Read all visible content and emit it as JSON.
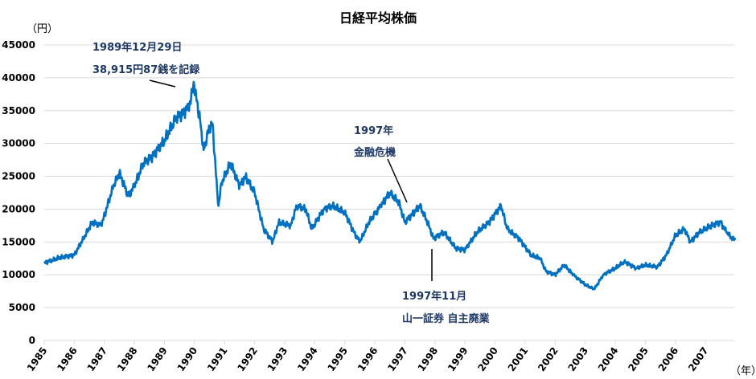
{
  "chart_data": {
    "type": "line",
    "title": "日経平均株価",
    "ylabel": "（円）",
    "xlabel": "（年）",
    "ylim": [
      0,
      45000
    ],
    "yticks": [
      0,
      5000,
      10000,
      15000,
      20000,
      25000,
      30000,
      35000,
      40000,
      45000
    ],
    "xlim": [
      1985,
      2008
    ],
    "xticks": [
      "1985",
      "1986",
      "1987",
      "1988",
      "1989",
      "1990",
      "1991",
      "1992",
      "1993",
      "1994",
      "1995",
      "1996",
      "1997",
      "1998",
      "1999",
      "2000",
      "2001",
      "2002",
      "2003",
      "2004",
      "2005",
      "2006",
      "2007"
    ],
    "grid": true,
    "line_color": "#0070c0",
    "annotation_color": "#1f3864",
    "series": [
      {
        "name": "日経平均株価",
        "x": [
          1985.0,
          1985.5,
          1986.0,
          1986.3,
          1986.6,
          1986.9,
          1987.3,
          1987.5,
          1987.8,
          1988.0,
          1988.3,
          1988.6,
          1989.0,
          1989.4,
          1989.6,
          1989.8,
          1989.99,
          1990.2,
          1990.3,
          1990.5,
          1990.6,
          1990.75,
          1990.8,
          1990.9,
          1991.2,
          1991.5,
          1991.7,
          1992.0,
          1992.3,
          1992.6,
          1992.8,
          1993.2,
          1993.4,
          1993.7,
          1993.9,
          1994.3,
          1994.6,
          1995.0,
          1995.3,
          1995.5,
          1995.8,
          1996.2,
          1996.5,
          1996.8,
          1997.0,
          1997.5,
          1997.8,
          1997.95,
          1998.3,
          1998.7,
          1999.0,
          1999.4,
          1999.8,
          2000.2,
          2000.4,
          2000.8,
          2001.2,
          2001.5,
          2001.7,
          2002.0,
          2002.3,
          2002.6,
          2003.0,
          2003.3,
          2003.6,
          2004.0,
          2004.3,
          2004.7,
          2005.0,
          2005.4,
          2005.7,
          2006.0,
          2006.3,
          2006.5,
          2006.8,
          2007.2,
          2007.5,
          2007.7,
          2007.9,
          2007.99
        ],
        "values": [
          11800,
          12600,
          13000,
          15500,
          18000,
          17500,
          23500,
          25500,
          22000,
          23500,
          27000,
          28000,
          30500,
          34000,
          34500,
          35500,
          38915,
          33000,
          29000,
          32500,
          33000,
          23000,
          20500,
          24000,
          27000,
          23500,
          25000,
          22500,
          17000,
          15000,
          18000,
          17500,
          20500,
          20000,
          17000,
          20000,
          20500,
          19500,
          16500,
          15000,
          18000,
          20500,
          22500,
          21000,
          18000,
          20500,
          17500,
          15500,
          16500,
          14000,
          13800,
          16500,
          18000,
          20500,
          17000,
          15500,
          13000,
          12500,
          10500,
          10000,
          11500,
          10000,
          8500,
          7800,
          10000,
          11000,
          12000,
          11000,
          11500,
          11200,
          13000,
          16000,
          17000,
          15000,
          16500,
          17500,
          18000,
          16500,
          15500,
          15300
        ]
      }
    ],
    "annotations": [
      {
        "lines": [
          "1989年12月29日",
          "38,915円87銭を記録"
        ]
      },
      {
        "lines": [
          "1997年",
          "金融危機"
        ]
      },
      {
        "lines": [
          "1997年11月",
          "山一証券 自主廃業"
        ]
      }
    ]
  }
}
